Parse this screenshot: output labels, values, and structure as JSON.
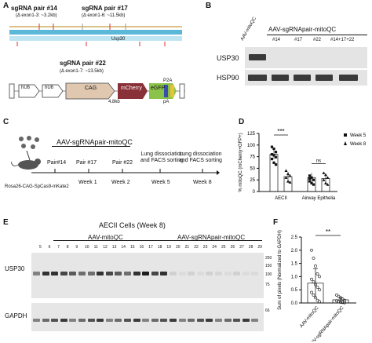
{
  "panels": {
    "A": {
      "label": "A",
      "sgrna_14": "sgRNA pair #14",
      "sgrna_14_sub": "(Δ exon1-3: ~3.2kb)",
      "sgrna_17": "sgRNA pair #17",
      "sgrna_17_sub": "(Δ exon1-6: ~11.5kb)",
      "gene": "Usp30",
      "sgrna_22": "sgRNA pair #22",
      "sgrna_22_sub": "(Δ exon1-7: ~13.5kb)",
      "constructs": [
        "hU6",
        "hU6",
        "CAG",
        "mCherry",
        "eGFP"
      ],
      "cag_size": "4.8kb",
      "p2a": "P2A",
      "pa": "pA"
    },
    "B": {
      "label": "B",
      "header": "AAV-sgRNApair-mitoQC",
      "lanes": [
        "AAV-mitoQC",
        "#14",
        "#17",
        "#22",
        "#14+17+22"
      ],
      "rows": [
        "USP30",
        "HSP90"
      ]
    },
    "C": {
      "label": "C",
      "header": "AAV-sgRNApair-mitoQC",
      "events": [
        "Pair#14",
        "Pair #17",
        "Pair #22",
        "Lung dissociation\nand FACS sorting",
        "Lung dissociation\nand FACS sorting"
      ],
      "weeks": [
        "Week 1",
        "Week 2",
        "Week 5",
        "Week 8"
      ],
      "mouse": "Rosa26-CAG-SpCas9-mKate2"
    },
    "D": {
      "label": "D",
      "significance": [
        "***",
        "ns"
      ],
      "chart_data": {
        "type": "scatter",
        "ylabel": "% mitoQC (mCherry+GFP+)",
        "ylim": [
          0,
          125
        ],
        "yticks": [
          0,
          25,
          50,
          75,
          100,
          125
        ],
        "categories": [
          "AECII",
          "Airway Epithelia"
        ],
        "series": [
          {
            "name": "Week 5",
            "marker": "square",
            "means": [
              80,
              30
            ],
            "points": [
              [
                96,
                92,
                85,
                80,
                78,
                74,
                70,
                62,
                58
              ],
              [
                34,
                30,
                25,
                22,
                18,
                15,
                28
              ]
            ]
          },
          {
            "name": "Week 8",
            "marker": "triangle",
            "means": [
              32,
              28
            ],
            "points": [
              [
                45,
                38,
                34,
                30,
                22,
                20
              ],
              [
                40,
                36,
                30,
                25,
                18,
                15
              ]
            ]
          }
        ]
      }
    },
    "E": {
      "label": "E",
      "title": "AECII Cells (Week 8)",
      "group1": "AAV-mitoQC",
      "group2": "AAV-sgRNApair-mitoQC",
      "lane_numbers": [
        "5",
        "6",
        "7",
        "8",
        "9",
        "10",
        "11",
        "12",
        "13",
        "14",
        "15",
        "16",
        "17",
        "18",
        "19",
        "20",
        "21",
        "22",
        "23",
        "24",
        "25",
        "26",
        "27",
        "28",
        "29"
      ],
      "rows": [
        "USP30",
        "GAPDH"
      ],
      "mw": [
        "250",
        "150",
        "100",
        "75",
        "66"
      ]
    },
    "F": {
      "label": "F",
      "significance": "**",
      "chart_data": {
        "type": "scatter",
        "ylabel": "Sum of pixels (Normalized to GAPDH)",
        "ylim": [
          0,
          2.5
        ],
        "yticks": [
          "0.0",
          "0.5",
          "1.0",
          "1.5",
          "2.0",
          "2.5"
        ],
        "categories": [
          "AAV-mitoQC",
          "AAV-sgRNApair-mitoQC"
        ],
        "bars": [
          0.75,
          0.12
        ],
        "errors": [
          0.55,
          0.08
        ],
        "points": [
          [
            2.0,
            1.7,
            1.4,
            1.1,
            1.0,
            0.9,
            0.8,
            0.7,
            0.6,
            0.5,
            0.4,
            0.3,
            0.2,
            0.1,
            0.05
          ],
          [
            0.3,
            0.25,
            0.2,
            0.15,
            0.1,
            0.08,
            0.05,
            0.03,
            0.02,
            0.01
          ]
        ]
      }
    }
  },
  "colors": {
    "mcherry": "#8a3038",
    "egfp": "#8bc34a",
    "cag": "#e0c8b0",
    "usp30": "#5cb8d9",
    "grid": "#d0d0d0"
  }
}
